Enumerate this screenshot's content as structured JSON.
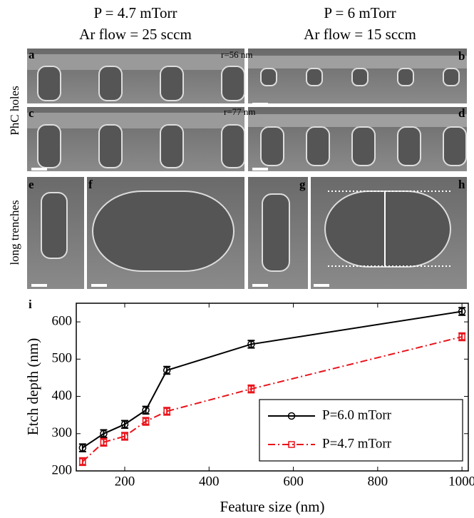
{
  "figure": {
    "left_header": [
      "P = 4.7 mTorr",
      "Ar flow = 25 sccm"
    ],
    "right_header": [
      "P = 6 mTorr",
      "Ar flow = 15 sccm"
    ],
    "row_labels": [
      "PhC holes",
      "long trenches"
    ],
    "annotations": [
      "r=56 nm",
      "r=77 nm"
    ],
    "panel_labels": [
      "a",
      "b",
      "c",
      "d",
      "e",
      "f",
      "g",
      "h",
      "i"
    ]
  },
  "chart_data": {
    "type": "line",
    "x_label": "Feature size (nm)",
    "y_label": "Etch depth (nm)",
    "x": [
      100,
      150,
      200,
      250,
      300,
      500,
      1000
    ],
    "series": [
      {
        "name": "P=6.0 mTorr",
        "color": "#000000",
        "linestyle": "solid",
        "marker": "circle",
        "values": [
          262,
          300,
          325,
          363,
          470,
          540,
          628
        ],
        "errors": [
          10,
          10,
          10,
          10,
          10,
          10,
          10
        ]
      },
      {
        "name": "P=4.7 mTorr",
        "color": "#e8141b",
        "linestyle": "dashdot",
        "marker": "square",
        "values": [
          225,
          277,
          293,
          333,
          360,
          420,
          560
        ],
        "errors": [
          10,
          10,
          10,
          10,
          10,
          10,
          10
        ]
      }
    ],
    "xlim": [
      85,
      1015
    ],
    "ylim": [
      200,
      650
    ],
    "xticks": [
      200,
      400,
      600,
      800,
      1000
    ],
    "yticks": [
      200,
      300,
      400,
      500,
      600
    ],
    "legend": "lower right"
  }
}
